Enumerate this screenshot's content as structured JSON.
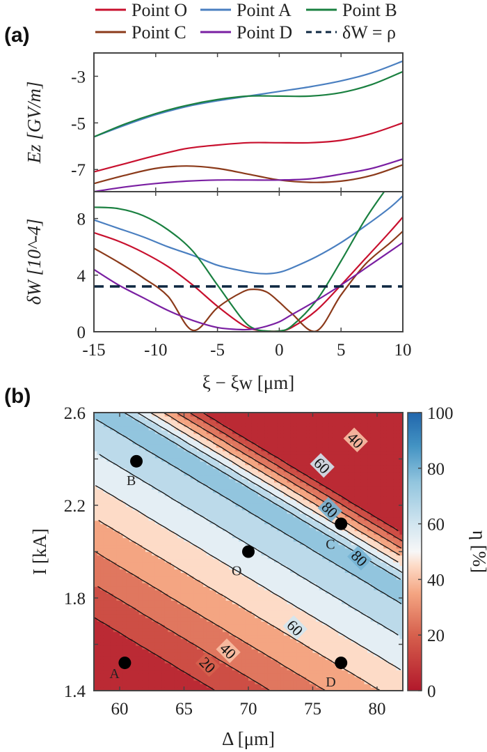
{
  "figure": {
    "panel_a_label": "(a)",
    "panel_b_label": "(b)"
  },
  "legend": {
    "items": [
      {
        "label": "Point O",
        "color": "#c8102e",
        "style": "solid"
      },
      {
        "label": "Point A",
        "color": "#4a7fc0",
        "style": "solid"
      },
      {
        "label": "Point B",
        "color": "#1a8040",
        "style": "solid"
      },
      {
        "label": "Point C",
        "color": "#8b3a1a",
        "style": "solid"
      },
      {
        "label": "Point D",
        "color": "#7a1fa2",
        "style": "solid"
      },
      {
        "label": "δW = ρ",
        "color": "#0d2740",
        "style": "dashed"
      }
    ]
  },
  "chart_data": [
    {
      "type": "line",
      "panel": "a-top",
      "title": "",
      "xlabel": "",
      "ylabel": "Ez [GV/m]",
      "xlim": [
        -15,
        10
      ],
      "ylim": [
        -7.95,
        -2.0
      ],
      "yticks": [
        -3,
        -5,
        -7
      ],
      "ytick_labels": [
        "-3",
        "-5",
        "-7"
      ],
      "xticks": [
        -15,
        -10,
        -5,
        0,
        5,
        10
      ],
      "x": [
        -15,
        -12.5,
        -10,
        -7.5,
        -5,
        -2.5,
        0,
        2.5,
        5,
        7.5,
        10
      ],
      "series": [
        {
          "name": "Point O",
          "color": "#c8102e",
          "values": [
            -7.1,
            -6.75,
            -6.4,
            -6.1,
            -5.95,
            -5.85,
            -5.85,
            -5.85,
            -5.75,
            -5.45,
            -5.0
          ]
        },
        {
          "name": "Point A",
          "color": "#4a7fc0",
          "values": [
            -5.6,
            -5.1,
            -4.65,
            -4.3,
            -4.05,
            -3.85,
            -3.65,
            -3.45,
            -3.2,
            -2.85,
            -2.35
          ]
        },
        {
          "name": "Point B",
          "color": "#1a8040",
          "values": [
            -5.6,
            -5.05,
            -4.6,
            -4.25,
            -4.0,
            -3.85,
            -3.85,
            -3.85,
            -3.7,
            -3.35,
            -2.8
          ]
        },
        {
          "name": "Point C",
          "color": "#8b3a1a",
          "values": [
            -7.6,
            -7.25,
            -6.95,
            -6.85,
            -6.95,
            -7.2,
            -7.45,
            -7.55,
            -7.5,
            -7.25,
            -6.8
          ]
        },
        {
          "name": "Point D",
          "color": "#7a1fa2",
          "values": [
            -7.95,
            -7.75,
            -7.6,
            -7.5,
            -7.45,
            -7.45,
            -7.45,
            -7.4,
            -7.2,
            -6.95,
            -6.55
          ]
        }
      ]
    },
    {
      "type": "line",
      "panel": "a-bottom",
      "title": "",
      "xlabel": "ξ − ξw [μm]",
      "ylabel": "δW [10^-4]",
      "xlim": [
        -15,
        10
      ],
      "ylim": [
        0,
        9.9
      ],
      "yticks": [
        0,
        4,
        8
      ],
      "ytick_labels": [
        "0",
        "4",
        "8"
      ],
      "xticks": [
        -15,
        -10,
        -5,
        0,
        5,
        10
      ],
      "xtick_labels": [
        "-15",
        "-10",
        "-5",
        "0",
        "5",
        "10"
      ],
      "x": [
        -15,
        -13,
        -11,
        -9,
        -7,
        -5,
        -3,
        -2,
        -1,
        0,
        1,
        3,
        5,
        7,
        9,
        10
      ],
      "series": [
        {
          "name": "Point O",
          "color": "#c8102e",
          "values": [
            7.0,
            6.4,
            5.6,
            4.6,
            3.3,
            1.8,
            0.5,
            0.15,
            0.05,
            0.05,
            0.3,
            1.5,
            3.3,
            5.2,
            7.1,
            8.1
          ]
        },
        {
          "name": "Point A",
          "color": "#4a7fc0",
          "values": [
            7.9,
            7.3,
            6.7,
            6.0,
            5.4,
            4.7,
            4.3,
            4.15,
            4.1,
            4.2,
            4.5,
            5.3,
            6.3,
            7.5,
            8.8,
            9.6
          ]
        },
        {
          "name": "Point B",
          "color": "#1a8040",
          "values": [
            8.8,
            8.7,
            8.2,
            7.2,
            5.7,
            3.3,
            0.9,
            0.2,
            0.05,
            0.05,
            0.4,
            2.2,
            5.0,
            8.0,
            10.5,
            11.5
          ]
        },
        {
          "name": "Point C",
          "color": "#8b3a1a",
          "values": [
            5.9,
            4.9,
            3.8,
            2.5,
            0.1,
            1.7,
            2.8,
            3.0,
            2.8,
            2.1,
            1.3,
            0.05,
            2.6,
            4.8,
            6.3,
            7.1
          ]
        },
        {
          "name": "Point D",
          "color": "#7a1fa2",
          "values": [
            4.4,
            3.3,
            2.4,
            1.5,
            0.8,
            0.3,
            0.15,
            0.2,
            0.4,
            0.7,
            1.2,
            2.2,
            3.3,
            4.5,
            5.7,
            6.3
          ]
        },
        {
          "name": "δW = ρ",
          "color": "#0d2740",
          "style": "dashed",
          "values": [
            3.2,
            3.2,
            3.2,
            3.2,
            3.2,
            3.2,
            3.2,
            3.2,
            3.2,
            3.2,
            3.2,
            3.2,
            3.2,
            3.2,
            3.2,
            3.2
          ]
        }
      ]
    },
    {
      "type": "heatmap",
      "panel": "b",
      "title": "",
      "xlabel": "Δ [μm]",
      "ylabel": "I [kA]",
      "xlim": [
        58,
        82
      ],
      "ylim": [
        1.4,
        2.6
      ],
      "xticks": [
        60,
        65,
        70,
        75,
        80
      ],
      "xtick_labels": [
        "60",
        "65",
        "70",
        "75",
        "80"
      ],
      "yticks": [
        1.4,
        1.8,
        2.2,
        2.6
      ],
      "ytick_labels": [
        "1.4",
        "1.8",
        "2.2",
        "2.6"
      ],
      "colorbar": {
        "label": "η [%]",
        "range": [
          0,
          100
        ],
        "ticks": [
          0,
          20,
          40,
          60,
          80,
          100
        ],
        "tick_labels": [
          "0",
          "20",
          "40",
          "60",
          "80",
          "100"
        ],
        "colormap": "RdBu"
      },
      "contour_levels": [
        10,
        20,
        30,
        40,
        50,
        60,
        70,
        80
      ],
      "contour_labels": [
        {
          "text": "20",
          "x": 66.8,
          "y": 1.51
        },
        {
          "text": "40",
          "x": 68.4,
          "y": 1.57
        },
        {
          "text": "60",
          "x": 73.6,
          "y": 1.67
        },
        {
          "text": "60",
          "x": 75.7,
          "y": 2.37
        },
        {
          "text": "40",
          "x": 78.3,
          "y": 2.48
        },
        {
          "text": "80",
          "x": 76.3,
          "y": 2.18
        },
        {
          "text": "80",
          "x": 78.6,
          "y": 1.97
        }
      ],
      "points": [
        {
          "label": "A",
          "x": 60.4,
          "y": 1.52
        },
        {
          "label": "B",
          "x": 61.3,
          "y": 2.39
        },
        {
          "label": "O",
          "x": 70.0,
          "y": 2.0
        },
        {
          "label": "C",
          "x": 77.2,
          "y": 2.12
        },
        {
          "label": "D",
          "x": 77.2,
          "y": 1.52
        }
      ]
    }
  ]
}
